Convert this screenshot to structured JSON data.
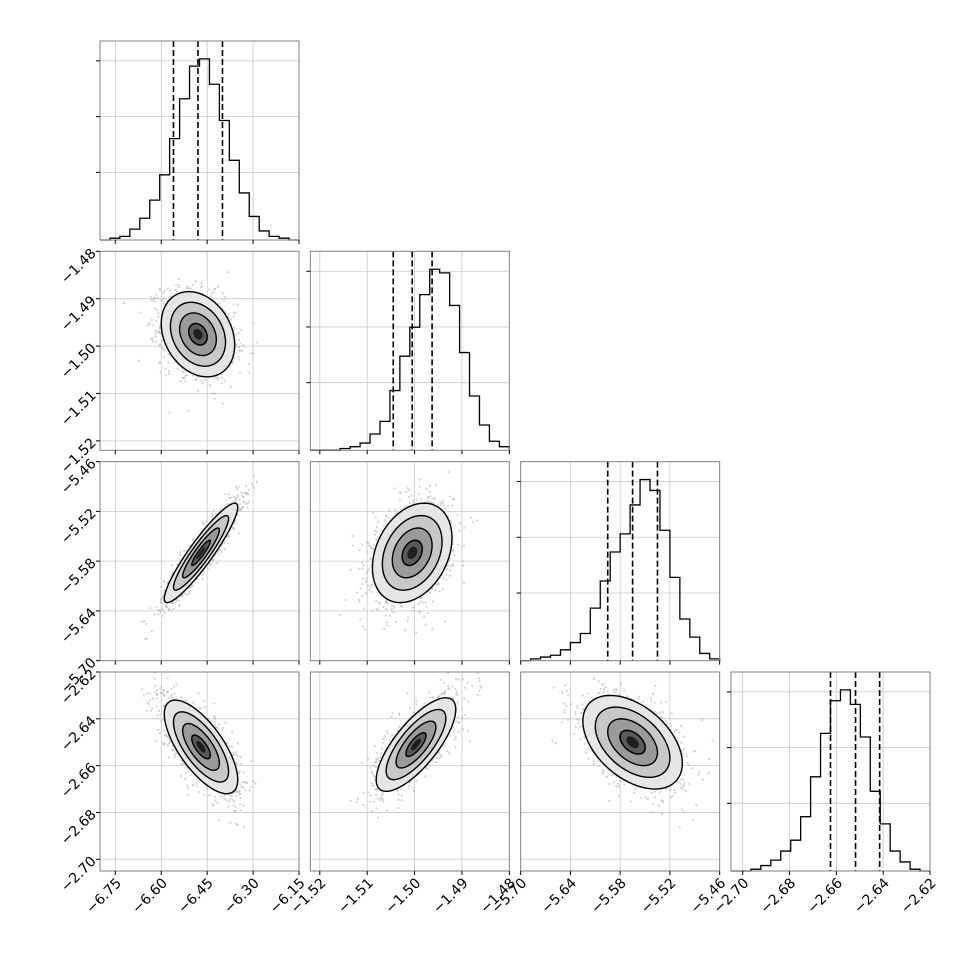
{
  "chart_data": {
    "type": "corner",
    "parameters": [
      {
        "range": [
          -6.8,
          -6.15
        ],
        "ticks": [
          -6.75,
          -6.6,
          -6.45,
          -6.3,
          -6.15
        ],
        "tick_labels": [
          "−6.75",
          "−6.60",
          "−6.45",
          "−6.30",
          "−6.15"
        ],
        "histogram": [
          0.0,
          0.01,
          0.02,
          0.06,
          0.12,
          0.22,
          0.36,
          0.56,
          0.78,
          0.96,
          1.0,
          0.86,
          0.66,
          0.44,
          0.26,
          0.13,
          0.05,
          0.02,
          0.01,
          0.0
        ],
        "quantiles": [
          -6.56,
          -6.48,
          -6.4
        ]
      },
      {
        "range": [
          -1.522,
          -1.48
        ],
        "ticks": [
          -1.52,
          -1.51,
          -1.5,
          -1.49,
          -1.48
        ],
        "tick_labels": [
          "−1.52",
          "−1.51",
          "−1.50",
          "−1.49",
          "−1.48"
        ],
        "histogram": [
          0.0,
          0.0,
          0.0,
          0.01,
          0.02,
          0.04,
          0.09,
          0.16,
          0.33,
          0.52,
          0.68,
          0.86,
          1.0,
          0.98,
          0.8,
          0.54,
          0.3,
          0.14,
          0.05,
          0.02
        ],
        "quantiles": [
          -1.5045,
          -1.5005,
          -1.4963
        ]
      },
      {
        "range": [
          -5.7,
          -5.46
        ],
        "ticks": [
          -5.7,
          -5.64,
          -5.58,
          -5.52,
          -5.46
        ],
        "tick_labels": [
          "−5.70",
          "−5.64",
          "−5.58",
          "−5.52",
          "−5.46"
        ],
        "histogram": [
          0.0,
          0.01,
          0.02,
          0.03,
          0.06,
          0.1,
          0.15,
          0.29,
          0.44,
          0.6,
          0.7,
          0.86,
          1.0,
          0.94,
          0.72,
          0.46,
          0.23,
          0.13,
          0.04,
          0.01
        ],
        "quantiles": [
          -5.595,
          -5.565,
          -5.535
        ]
      },
      {
        "range": [
          -2.705,
          -2.62
        ],
        "ticks": [
          -2.7,
          -2.68,
          -2.66,
          -2.64,
          -2.62
        ],
        "tick_labels": [
          "−2.70",
          "−2.68",
          "−2.66",
          "−2.64",
          "−2.62"
        ],
        "histogram": [
          0.0,
          0.0,
          0.01,
          0.03,
          0.06,
          0.11,
          0.17,
          0.3,
          0.52,
          0.76,
          0.94,
          1.0,
          0.92,
          0.74,
          0.44,
          0.26,
          0.11,
          0.05,
          0.01,
          0.0
        ],
        "quantiles": [
          -2.6625,
          -2.6518,
          -2.6415
        ]
      }
    ],
    "pairs": [
      {
        "x": 0,
        "y": 1,
        "center": [
          -6.48,
          -1.4975
        ],
        "sigma": [
          0.06,
          0.0045
        ],
        "rho": -0.25
      },
      {
        "x": 0,
        "y": 2,
        "center": [
          -6.47,
          -5.57
        ],
        "sigma": [
          0.06,
          0.03
        ],
        "rho": 0.92
      },
      {
        "x": 1,
        "y": 2,
        "center": [
          -1.5005,
          -5.57
        ],
        "sigma": [
          0.0042,
          0.03
        ],
        "rho": 0.3
      },
      {
        "x": 0,
        "y": 3,
        "center": [
          -6.47,
          -2.652
        ],
        "sigma": [
          0.06,
          0.01
        ],
        "rho": -0.7
      },
      {
        "x": 1,
        "y": 3,
        "center": [
          -1.4997,
          -2.651
        ],
        "sigma": [
          0.0042,
          0.01
        ],
        "rho": 0.75
      },
      {
        "x": 2,
        "y": 3,
        "center": [
          -5.565,
          -2.65
        ],
        "sigma": [
          0.03,
          0.01
        ],
        "rho": -0.45
      }
    ],
    "contour_levels_sigma": [
      0.5,
      1.0,
      1.5,
      2.0
    ],
    "grid": true,
    "colors": {
      "line": "#000000",
      "scatter": "#b0b0b0",
      "grid": "#c8c8c8",
      "frame": "#808080"
    }
  }
}
